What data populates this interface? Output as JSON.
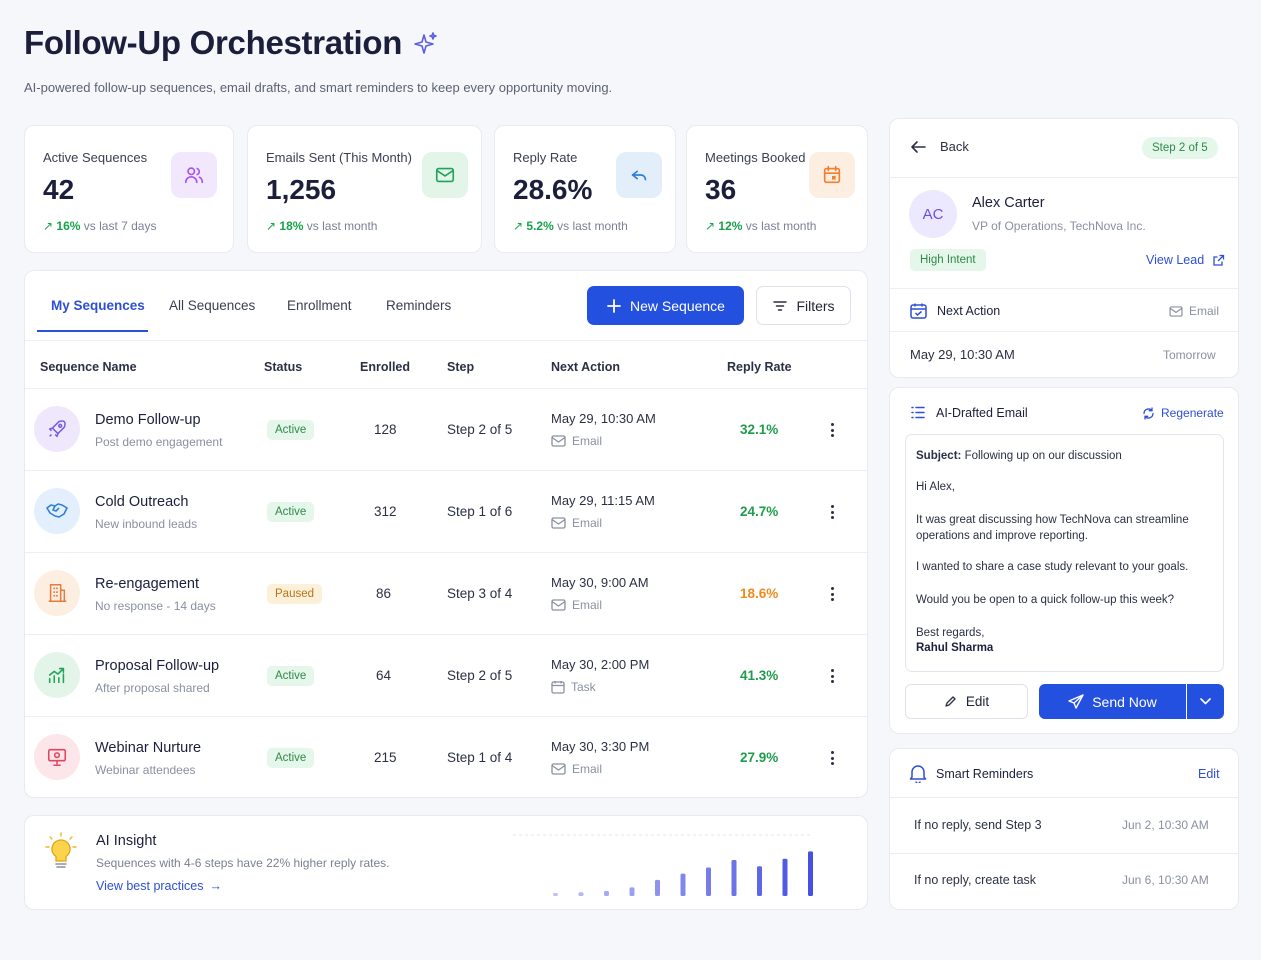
{
  "header": {
    "title": "Follow-Up Orchestration",
    "subtitle": "AI-powered follow-up sequences, email drafts, and smart reminders to keep every opportunity moving."
  },
  "stats": [
    {
      "label": "Active Sequences",
      "value": "42",
      "delta_pct": "16%",
      "delta_text": "vs last 7 days",
      "icon": "users-icon",
      "color": "#a855f7"
    },
    {
      "label": "Emails Sent (This Month)",
      "value": "1,256",
      "delta_pct": "18%",
      "delta_text": "vs last month",
      "icon": "mail-icon",
      "color": "#22a35a"
    },
    {
      "label": "Reply Rate",
      "value": "28.6%",
      "delta_pct": "5.2%",
      "delta_text": "vs last month",
      "icon": "reply-icon",
      "color": "#2f7fd8"
    },
    {
      "label": "Meetings Booked",
      "value": "36",
      "delta_pct": "12%",
      "delta_text": "vs last month",
      "icon": "calendar-icon",
      "color": "#f07f2e"
    }
  ],
  "tabs": [
    "My Sequences",
    "All Sequences",
    "Enrollment",
    "Reminders"
  ],
  "actions": {
    "new_sequence": "New Sequence",
    "filters": "Filters"
  },
  "table": {
    "columns": [
      "Sequence Name",
      "Status",
      "Enrolled",
      "Step",
      "Next Action",
      "Reply Rate"
    ],
    "rows": [
      {
        "name": "Demo Follow-up",
        "sub": "Post demo engagement",
        "status": "Active",
        "enrolled": "128",
        "step": "Step 2 of 5",
        "time": "May 29, 10:30 AM",
        "channel": "Email",
        "reply": "32.1%",
        "icon": "rocket-icon"
      },
      {
        "name": "Cold Outreach",
        "sub": "New inbound leads",
        "status": "Active",
        "enrolled": "312",
        "step": "Step 1 of 6",
        "time": "May 29, 11:15 AM",
        "channel": "Email",
        "reply": "24.7%",
        "icon": "handshake-icon"
      },
      {
        "name": "Re-engagement",
        "sub": "No response - 14 days",
        "status": "Paused",
        "enrolled": "86",
        "step": "Step 3 of 4",
        "time": "May 30, 9:00 AM",
        "channel": "Email",
        "reply": "18.6%",
        "icon": "building-icon"
      },
      {
        "name": "Proposal Follow-up",
        "sub": "After proposal shared",
        "status": "Active",
        "enrolled": "64",
        "step": "Step 2 of 5",
        "time": "May 30, 2:00 PM",
        "channel": "Task",
        "reply": "41.3%",
        "icon": "chart-up-icon"
      },
      {
        "name": "Webinar Nurture",
        "sub": "Webinar attendees",
        "status": "Active",
        "enrolled": "215",
        "step": "Step 1 of 4",
        "time": "May 30, 3:30 PM",
        "channel": "Email",
        "reply": "27.9%",
        "icon": "presentation-icon"
      }
    ]
  },
  "insight": {
    "title": "AI Insight",
    "text": "Sequences with 4-6 steps have 22% higher reply rates.",
    "link": "View best practices",
    "bars": [
      0.04,
      0.06,
      0.08,
      0.14,
      0.26,
      0.36,
      0.46,
      0.58,
      0.48,
      0.6,
      0.72
    ]
  },
  "lead": {
    "back": "Back",
    "step_badge": "Step 2 of 5",
    "initials": "AC",
    "name": "Alex Carter",
    "title": "VP of Operations, TechNova Inc.",
    "intent": "High Intent",
    "view_lead": "View Lead"
  },
  "next_action": {
    "label": "Next Action",
    "channel": "Email",
    "time": "May 29, 10:30 AM",
    "relative": "Tomorrow"
  },
  "draft": {
    "label": "AI-Drafted Email",
    "regenerate": "Regenerate",
    "subject_label": "Subject:",
    "subject": "Following up on our discussion",
    "greeting": "Hi Alex,",
    "p1": "It was great discussing how TechNova can streamline operations and improve reporting.",
    "p2": "I wanted to share a case study relevant to your goals.",
    "p3": "Would you be open to a quick follow-up this week?",
    "signoff": "Best regards,",
    "signature": "Rahul Sharma",
    "edit": "Edit",
    "send": "Send Now"
  },
  "reminders": {
    "label": "Smart Reminders",
    "edit": "Edit",
    "items": [
      {
        "text": "If no reply, send Step 3",
        "date": "Jun 2, 10:30 AM"
      },
      {
        "text": "If no reply, create task",
        "date": "Jun 6, 10:30 AM"
      }
    ]
  }
}
